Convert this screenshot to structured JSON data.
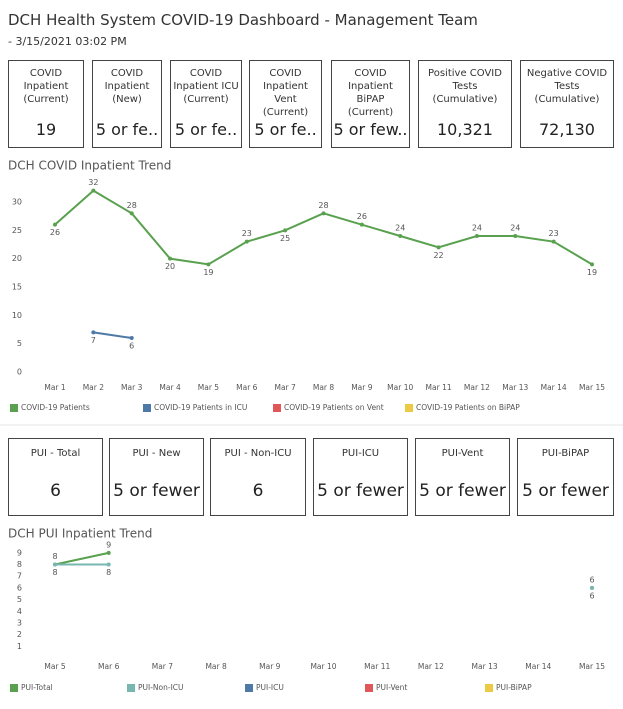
{
  "header": {
    "title": "DCH Health System COVID-19 Dashboard - Management Team",
    "subtitle": "- 3/15/2021 03:02 PM"
  },
  "kpis": [
    {
      "label": "COVID Inpatient (Current)",
      "value": "19"
    },
    {
      "label": "COVID Inpatient (New)",
      "value": "5 or fe.."
    },
    {
      "label": "COVID Inpatient ICU (Current)",
      "value": "5 or fe.."
    },
    {
      "label": "COVID Inpatient Vent (Current)",
      "value": "5 or fe.."
    },
    {
      "label": "COVID Inpatient BiPAP (Current)",
      "value": "5 or few.."
    },
    {
      "label": "Positive COVID Tests (Cumulative)",
      "value": "10,321"
    },
    {
      "label": "Negative COVID Tests (Cumulative)",
      "value": "72,130"
    }
  ],
  "pui_kpis": [
    {
      "label": "PUI - Total",
      "value": "6"
    },
    {
      "label": "PUI - New",
      "value": "5 or fewer"
    },
    {
      "label": "PUI - Non-ICU",
      "value": "6"
    },
    {
      "label": "PUI-ICU",
      "value": "5 or fewer"
    },
    {
      "label": "PUI-Vent",
      "value": "5 or fewer"
    },
    {
      "label": "PUI-BiPAP",
      "value": "5 or fewer"
    }
  ],
  "chart_data": [
    {
      "type": "line",
      "title": "DCH COVID Inpatient Trend",
      "categories": [
        "Mar 1",
        "Mar 2",
        "Mar 3",
        "Mar 4",
        "Mar 5",
        "Mar 6",
        "Mar 7",
        "Mar 8",
        "Mar 9",
        "Mar 10",
        "Mar 11",
        "Mar 12",
        "Mar 13",
        "Mar 14",
        "Mar 15"
      ],
      "series": [
        {
          "name": "COVID-19 Patients",
          "color": "#59a14f",
          "values": [
            26,
            32,
            28,
            20,
            19,
            23,
            25,
            28,
            26,
            24,
            22,
            24,
            24,
            23,
            19
          ]
        },
        {
          "name": "COVID-19 Patients in ICU",
          "color": "#4e79a7",
          "values": [
            null,
            7,
            6,
            null,
            null,
            null,
            null,
            null,
            null,
            null,
            null,
            null,
            null,
            null,
            null
          ]
        },
        {
          "name": "COVID-19 Patients on Vent",
          "color": "#e15759",
          "values": [
            null,
            null,
            null,
            null,
            null,
            null,
            null,
            null,
            null,
            null,
            null,
            null,
            null,
            null,
            null
          ]
        },
        {
          "name": "COVID-19 Patients on BiPAP",
          "color": "#edc948",
          "values": [
            null,
            null,
            null,
            null,
            null,
            null,
            null,
            null,
            null,
            null,
            null,
            null,
            null,
            null,
            null
          ]
        }
      ],
      "ylim": [
        0,
        33
      ],
      "yticks": [
        0,
        5,
        10,
        15,
        20,
        25,
        30
      ],
      "legend": "bottom"
    },
    {
      "type": "line",
      "title": "DCH PUI Inpatient Trend",
      "categories": [
        "Mar 5",
        "Mar 6",
        "Mar 7",
        "Mar 8",
        "Mar 9",
        "Mar 10",
        "Mar 11",
        "Mar 12",
        "Mar 13",
        "Mar 14",
        "Mar 15"
      ],
      "series": [
        {
          "name": "PUI-Total",
          "color": "#59a14f",
          "values": [
            8,
            9,
            null,
            null,
            null,
            null,
            null,
            null,
            null,
            null,
            6
          ]
        },
        {
          "name": "PUI-Non-ICU",
          "color": "#76b7b2",
          "values": [
            8,
            8,
            null,
            null,
            null,
            null,
            null,
            null,
            null,
            null,
            6
          ]
        },
        {
          "name": "PUI-ICU",
          "color": "#4e79a7",
          "values": [
            null,
            null,
            null,
            null,
            null,
            null,
            null,
            null,
            null,
            null,
            null
          ]
        },
        {
          "name": "PUI-Vent",
          "color": "#e15759",
          "values": [
            null,
            null,
            null,
            null,
            null,
            null,
            null,
            null,
            null,
            null,
            null
          ]
        },
        {
          "name": "PUI-BiPAP",
          "color": "#edc948",
          "values": [
            null,
            null,
            null,
            null,
            null,
            null,
            null,
            null,
            null,
            null,
            null
          ]
        }
      ],
      "ylim": [
        0,
        9.5
      ],
      "yticks": [
        1,
        2,
        3,
        4,
        5,
        6,
        7,
        8,
        9
      ],
      "legend": "bottom"
    }
  ]
}
